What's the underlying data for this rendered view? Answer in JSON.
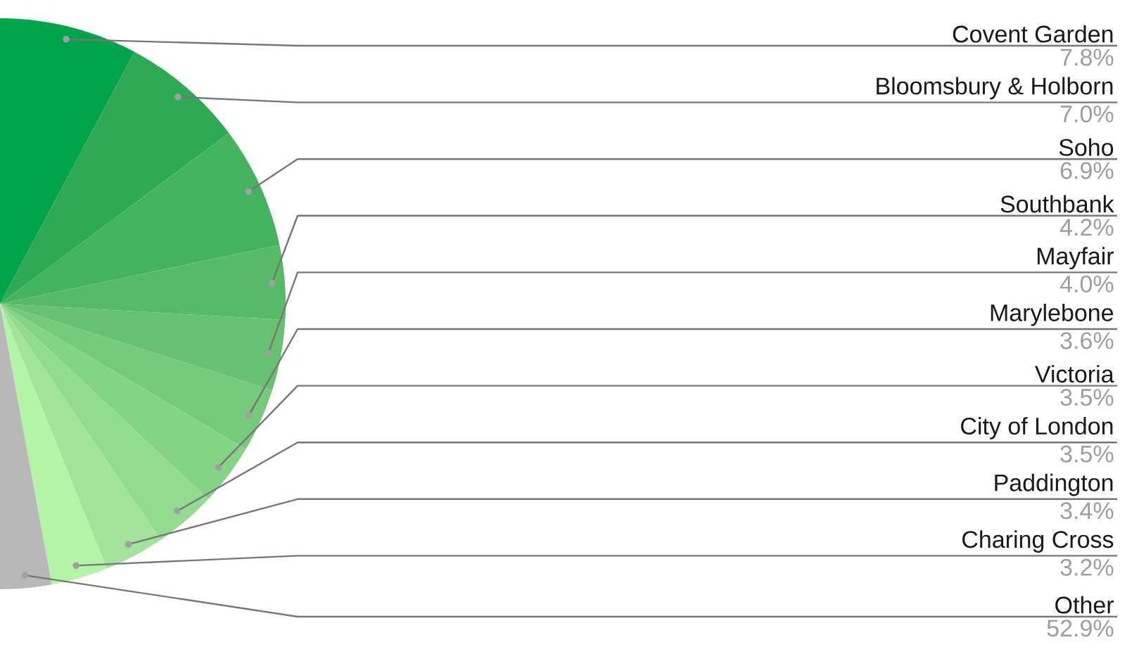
{
  "chart_data": {
    "type": "pie",
    "categories": [
      "Covent Garden",
      "Bloomsbury & Holborn",
      "Soho",
      "Southbank",
      "Mayfair",
      "Marylebone",
      "Victoria",
      "City of London",
      "Paddington",
      "Charing Cross",
      "Other"
    ],
    "values": [
      7.8,
      7.0,
      6.9,
      4.2,
      4.0,
      3.6,
      3.5,
      3.5,
      3.4,
      3.2,
      52.9
    ],
    "value_labels": [
      "7.8%",
      "7.0%",
      "6.9%",
      "4.2%",
      "4.0%",
      "3.6%",
      "3.5%",
      "3.5%",
      "3.4%",
      "3.2%",
      "52.9%"
    ],
    "colors": [
      "#00a44a",
      "#2eaa55",
      "#45b35e",
      "#57ba67",
      "#66c270",
      "#76ca7a",
      "#85d385",
      "#93db8f",
      "#a0e399",
      "#b3f5a7",
      "#b8b8b8"
    ]
  }
}
